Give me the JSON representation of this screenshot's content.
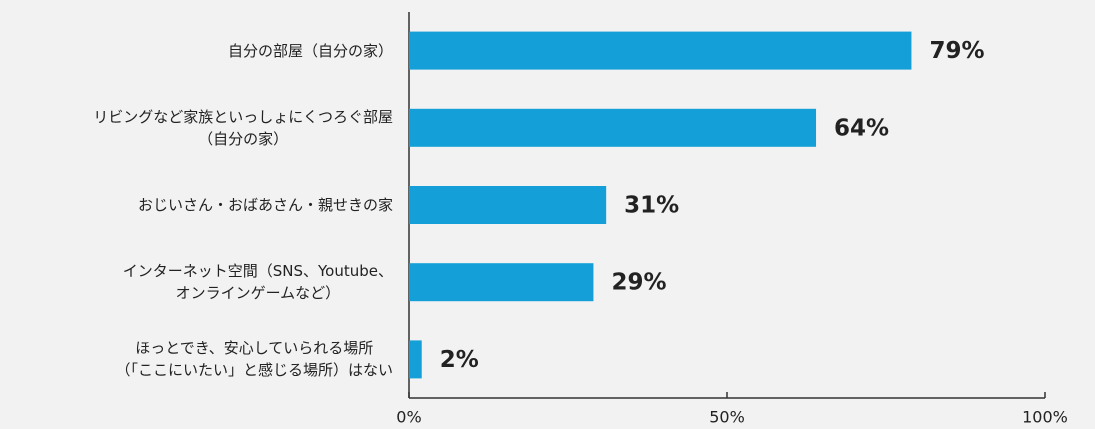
{
  "chart_data": {
    "type": "bar",
    "orientation": "horizontal",
    "categories": [
      "自分の部屋（自分の家）",
      "リビングなど家族といっしょにくつろぐ部屋\n（自分の家）",
      "おじいさん・おばあさん・親せきの家",
      "インターネット空間（SNS、Youtube、\nオンラインゲームなど）",
      "ほっとでき、安心していられる場所\n（「ここにいたい」と感じる場所）はない"
    ],
    "values": [
      79,
      64,
      31,
      29,
      2
    ],
    "value_labels": [
      "79%",
      "64%",
      "31%",
      "29%",
      "2%"
    ],
    "color": "#149fd8",
    "xlim": [
      0,
      100
    ],
    "xticks": [
      {
        "value": 0,
        "label": "0%"
      },
      {
        "value": 50,
        "label": "50%"
      },
      {
        "value": 100,
        "label": "100%"
      }
    ]
  }
}
